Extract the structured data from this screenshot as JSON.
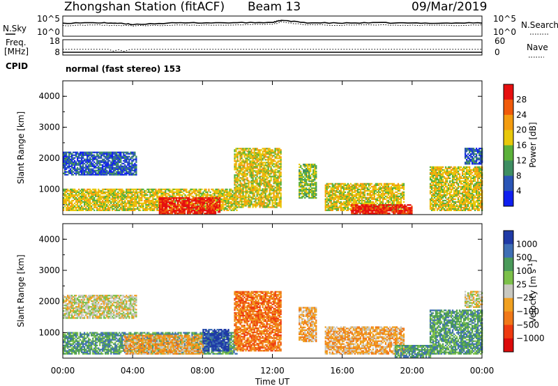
{
  "header": {
    "station": "Zhongshan Station (fitACF)",
    "beam": "Beam 13",
    "date": "09/Mar/2019"
  },
  "chart_data": [
    {
      "type": "line",
      "panel": "noise",
      "left_label": "N.Sky",
      "right_label": "N.Search",
      "left_ticks": [
        "10^5",
        "10^0"
      ],
      "right_ticks": [
        "10^5",
        "10^0"
      ],
      "x": [
        0,
        2,
        3,
        4,
        6,
        8,
        10,
        12,
        12.5,
        14,
        16,
        18,
        20,
        22,
        24
      ],
      "series": [
        {
          "values": [
            3.3,
            3.4,
            3.3,
            2.9,
            3.3,
            3.4,
            3.4,
            3.5,
            4.1,
            3.4,
            3.3,
            3.4,
            3.3,
            3.3,
            3.4
          ]
        },
        {
          "values": [
            2.6,
            2.7,
            2.6,
            2.5,
            2.7,
            2.7,
            2.8,
            2.9,
            3.6,
            2.8,
            2.7,
            2.7,
            2.7,
            2.6,
            2.7
          ]
        }
      ]
    },
    {
      "type": "line",
      "panel": "frequency",
      "left_label": "Freq.",
      "left_unit": "[MHz]",
      "left_ticks": [
        "18",
        "8"
      ],
      "right_ticks": [
        "60",
        "0"
      ],
      "right_label": "Nave",
      "freq_mhz": 10.0,
      "nave": [
        {
          "x": 0,
          "value": 22
        },
        {
          "x": 2.6,
          "value": 22
        },
        {
          "x": 2.9,
          "value": 14
        },
        {
          "x": 3.2,
          "value": 20
        },
        {
          "x": 3.5,
          "value": 13
        },
        {
          "x": 3.8,
          "value": 20
        },
        {
          "x": 4.0,
          "value": 22
        },
        {
          "x": 24,
          "value": 22
        }
      ]
    },
    {
      "type": "table",
      "panel": "cpid",
      "label": "CPID",
      "text": "normal (fast stereo) 153"
    },
    {
      "type": "heatmap",
      "panel": "power",
      "ylabel": "Slant Range [km]",
      "yticks": [
        1000,
        2000,
        3000,
        4000
      ],
      "ylim": [
        180,
        4500
      ],
      "colorbar_label": "Power [dB]",
      "colorbar_ticks": [
        4,
        8,
        12,
        16,
        20,
        24,
        28
      ],
      "colors": [
        "#0f1ff0",
        "#2a55b6",
        "#3e8e62",
        "#5bb13a",
        "#e8c80b",
        "#f39c10",
        "#f05a0a",
        "#e60f0f"
      ],
      "regions": [
        {
          "t0": 0.0,
          "t1": 4.2,
          "r0": 1450,
          "r1": 2200,
          "level": 1
        },
        {
          "t0": 0.0,
          "t1": 10.0,
          "r0": 300,
          "r1": 1000,
          "level": 4
        },
        {
          "t0": 5.5,
          "t1": 9.0,
          "r0": 200,
          "r1": 700,
          "level": 7
        },
        {
          "t0": 9.8,
          "t1": 12.5,
          "r0": 400,
          "r1": 2300,
          "level": 4
        },
        {
          "t0": 13.5,
          "t1": 14.5,
          "r0": 700,
          "r1": 1800,
          "level": 3
        },
        {
          "t0": 15.0,
          "t1": 19.5,
          "r0": 300,
          "r1": 1200,
          "level": 4
        },
        {
          "t0": 16.5,
          "t1": 20.0,
          "r0": 200,
          "r1": 500,
          "level": 7
        },
        {
          "t0": 21.0,
          "t1": 24.0,
          "r0": 300,
          "r1": 1700,
          "level": 4
        },
        {
          "t0": 23.0,
          "t1": 24.0,
          "r0": 1800,
          "r1": 2300,
          "level": 1
        }
      ]
    },
    {
      "type": "heatmap",
      "panel": "velocity",
      "ylabel": "Slant Range [km]",
      "xlabel": "Time UT",
      "xticks": [
        "00:00",
        "04:00",
        "08:00",
        "12:00",
        "16:00",
        "20:00",
        "00:00"
      ],
      "yticks": [
        1000,
        2000,
        3000,
        4000
      ],
      "ylim": [
        180,
        4500
      ],
      "colorbar_label": "Velocity [m s",
      "colorbar_label_sup": "-1",
      "colorbar_label_end": "]",
      "colorbar_ticks": [
        "1000",
        "500",
        "100",
        "25",
        "−25",
        "−100",
        "−500",
        "−1000"
      ],
      "colors": [
        "#1f3aa6",
        "#3f6fb5",
        "#4a9a5a",
        "#7cc04a",
        "#c8c8c0",
        "#f0a020",
        "#f07818",
        "#ee3a10",
        "#dc0a0a"
      ],
      "regions": [
        {
          "t0": 0.0,
          "t1": 4.2,
          "r0": 1450,
          "r1": 2200,
          "level": 4
        },
        {
          "t0": 0.0,
          "t1": 10.0,
          "r0": 300,
          "r1": 1000,
          "level": 2
        },
        {
          "t0": 3.5,
          "t1": 8.0,
          "r0": 300,
          "r1": 900,
          "level": 5
        },
        {
          "t0": 8.0,
          "t1": 9.5,
          "r0": 400,
          "r1": 1100,
          "level": 0
        },
        {
          "t0": 9.8,
          "t1": 12.5,
          "r0": 400,
          "r1": 2300,
          "level": 6
        },
        {
          "t0": 13.5,
          "t1": 14.5,
          "r0": 700,
          "r1": 1800,
          "level": 5
        },
        {
          "t0": 15.0,
          "t1": 19.5,
          "r0": 300,
          "r1": 1200,
          "level": 5
        },
        {
          "t0": 19.0,
          "t1": 21.0,
          "r0": 200,
          "r1": 600,
          "level": 2
        },
        {
          "t0": 21.0,
          "t1": 24.0,
          "r0": 300,
          "r1": 1700,
          "level": 2
        },
        {
          "t0": 23.0,
          "t1": 24.0,
          "r0": 1800,
          "r1": 2300,
          "level": 4
        }
      ]
    }
  ]
}
